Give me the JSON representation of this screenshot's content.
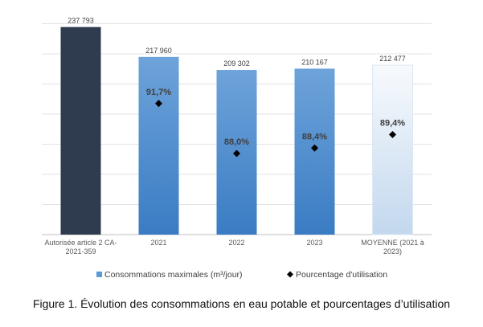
{
  "chart_data": {
    "type": "bar",
    "categories": [
      "Autorisée article 2 CA-2021-359",
      "2021",
      "2022",
      "2023",
      "MOYENNE (2021 à 2023)"
    ],
    "category_lines": [
      [
        "Autorisée article 2 CA-",
        "2021-359"
      ],
      [
        "2021"
      ],
      [
        "2022"
      ],
      [
        "2023"
      ],
      [
        "MOYENNE (2021 à",
        "2023)"
      ]
    ],
    "series": [
      {
        "name": "Consommations maximales (m³/jour)",
        "type": "bar",
        "values": [
          237793,
          217960,
          209302,
          210167,
          212477
        ],
        "labels": [
          "237 793",
          "217 960",
          "209 302",
          "210 167",
          "212 477"
        ],
        "color": "#5b9bd5"
      },
      {
        "name": "Pourcentage d'utilisation",
        "type": "scatter",
        "marker": "diamond",
        "values": [
          null,
          91.7,
          88.0,
          88.4,
          89.4
        ],
        "labels": [
          "",
          "91,7%",
          "88,0%",
          "88,4%",
          "89,4%"
        ],
        "color": "#000000"
      }
    ],
    "bar_colors": [
      "#2f3b4e",
      "#4a8ad0",
      "#4a8ad0",
      "#4a8ad0",
      "#e6eff9"
    ],
    "ylim": [
      100000,
      240000
    ],
    "y_gridstep": 20000,
    "y2lim": [
      82,
      97.6
    ],
    "grid": true,
    "y_axis_labels_visible": false,
    "legend": "bottom",
    "caption": "Figure 1. Évolution des consommations en eau potable et pourcentages d’utilisation"
  }
}
